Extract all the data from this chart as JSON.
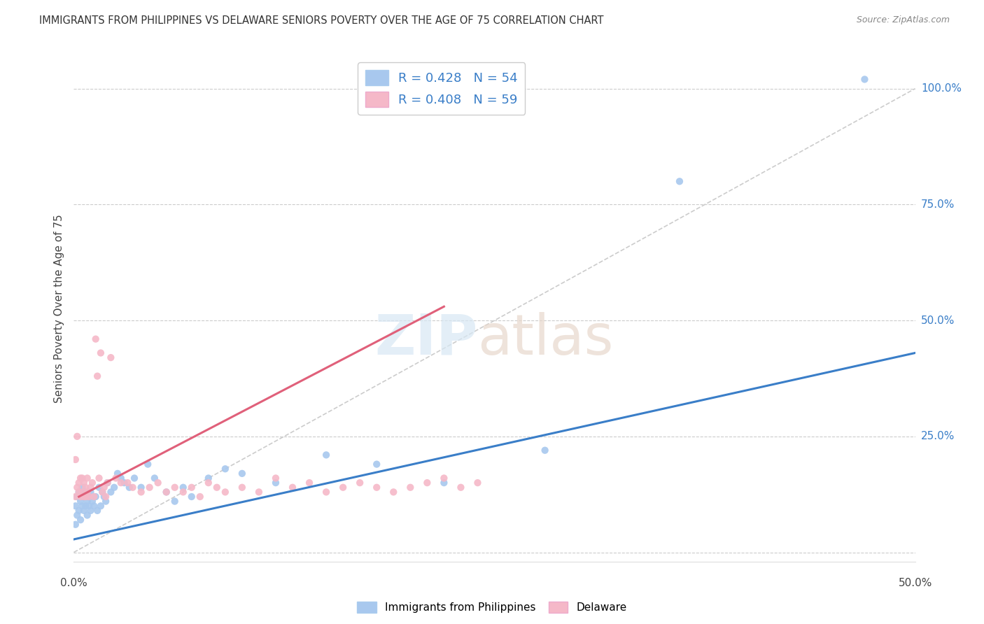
{
  "title": "IMMIGRANTS FROM PHILIPPINES VS DELAWARE SENIORS POVERTY OVER THE AGE OF 75 CORRELATION CHART",
  "source": "Source: ZipAtlas.com",
  "ylabel": "Seniors Poverty Over the Age of 75",
  "xlim": [
    0.0,
    0.5
  ],
  "ylim": [
    -0.02,
    1.07
  ],
  "series1": {
    "label": "Immigrants from Philippines",
    "color": "#a8c8ee",
    "R": 0.428,
    "N": 54,
    "line_color": "#3a7ec8"
  },
  "series2": {
    "label": "Delaware",
    "color": "#f5b8c8",
    "R": 0.408,
    "N": 59,
    "line_color": "#e0607a"
  },
  "background_color": "#ffffff",
  "scatter1_x": [
    0.001,
    0.001,
    0.002,
    0.002,
    0.003,
    0.003,
    0.004,
    0.004,
    0.005,
    0.005,
    0.006,
    0.006,
    0.007,
    0.007,
    0.008,
    0.008,
    0.009,
    0.009,
    0.01,
    0.01,
    0.011,
    0.012,
    0.013,
    0.014,
    0.015,
    0.016,
    0.017,
    0.018,
    0.019,
    0.02,
    0.022,
    0.024,
    0.026,
    0.028,
    0.03,
    0.033,
    0.036,
    0.04,
    0.044,
    0.048,
    0.055,
    0.06,
    0.065,
    0.07,
    0.08,
    0.09,
    0.1,
    0.12,
    0.15,
    0.18,
    0.22,
    0.28,
    0.36,
    0.47
  ],
  "scatter1_y": [
    0.1,
    0.06,
    0.12,
    0.08,
    0.09,
    0.13,
    0.07,
    0.11,
    0.1,
    0.14,
    0.09,
    0.12,
    0.1,
    0.13,
    0.11,
    0.08,
    0.12,
    0.1,
    0.09,
    0.13,
    0.11,
    0.1,
    0.12,
    0.09,
    0.14,
    0.1,
    0.13,
    0.12,
    0.11,
    0.15,
    0.13,
    0.14,
    0.17,
    0.16,
    0.15,
    0.14,
    0.16,
    0.14,
    0.19,
    0.16,
    0.13,
    0.11,
    0.14,
    0.12,
    0.16,
    0.18,
    0.17,
    0.15,
    0.21,
    0.19,
    0.15,
    0.22,
    0.8,
    1.02
  ],
  "scatter1_line_x": [
    0.0,
    0.5
  ],
  "scatter1_line_y": [
    0.028,
    0.43
  ],
  "scatter2_x": [
    0.001,
    0.001,
    0.002,
    0.002,
    0.003,
    0.003,
    0.004,
    0.004,
    0.005,
    0.005,
    0.006,
    0.006,
    0.007,
    0.007,
    0.008,
    0.008,
    0.009,
    0.01,
    0.011,
    0.012,
    0.013,
    0.014,
    0.015,
    0.016,
    0.017,
    0.018,
    0.019,
    0.02,
    0.022,
    0.025,
    0.028,
    0.032,
    0.035,
    0.04,
    0.045,
    0.05,
    0.055,
    0.06,
    0.065,
    0.07,
    0.075,
    0.08,
    0.085,
    0.09,
    0.1,
    0.11,
    0.12,
    0.13,
    0.14,
    0.15,
    0.16,
    0.17,
    0.18,
    0.19,
    0.2,
    0.21,
    0.22,
    0.23,
    0.24
  ],
  "scatter2_y": [
    0.12,
    0.2,
    0.14,
    0.25,
    0.15,
    0.13,
    0.16,
    0.12,
    0.13,
    0.16,
    0.12,
    0.15,
    0.14,
    0.12,
    0.13,
    0.16,
    0.12,
    0.14,
    0.15,
    0.12,
    0.46,
    0.38,
    0.16,
    0.43,
    0.13,
    0.14,
    0.12,
    0.15,
    0.42,
    0.16,
    0.15,
    0.15,
    0.14,
    0.13,
    0.14,
    0.15,
    0.13,
    0.14,
    0.13,
    0.14,
    0.12,
    0.15,
    0.14,
    0.13,
    0.14,
    0.13,
    0.16,
    0.14,
    0.15,
    0.13,
    0.14,
    0.15,
    0.14,
    0.13,
    0.14,
    0.15,
    0.16,
    0.14,
    0.15
  ],
  "scatter2_line_x": [
    0.003,
    0.22
  ],
  "scatter2_line_y": [
    0.12,
    0.53
  ],
  "diag_line_x": [
    0.0,
    0.5
  ],
  "diag_line_y": [
    0.0,
    1.0
  ],
  "ytick_positions": [
    0.0,
    0.25,
    0.5,
    0.75,
    1.0
  ],
  "ytick_labels": [
    "",
    "25.0%",
    "50.0%",
    "75.0%",
    "100.0%"
  ],
  "right_ytick_positions": [
    0.25,
    0.5,
    0.75,
    1.0
  ],
  "right_ytick_labels": [
    "25.0%",
    "50.0%",
    "75.0%",
    "100.0%"
  ]
}
